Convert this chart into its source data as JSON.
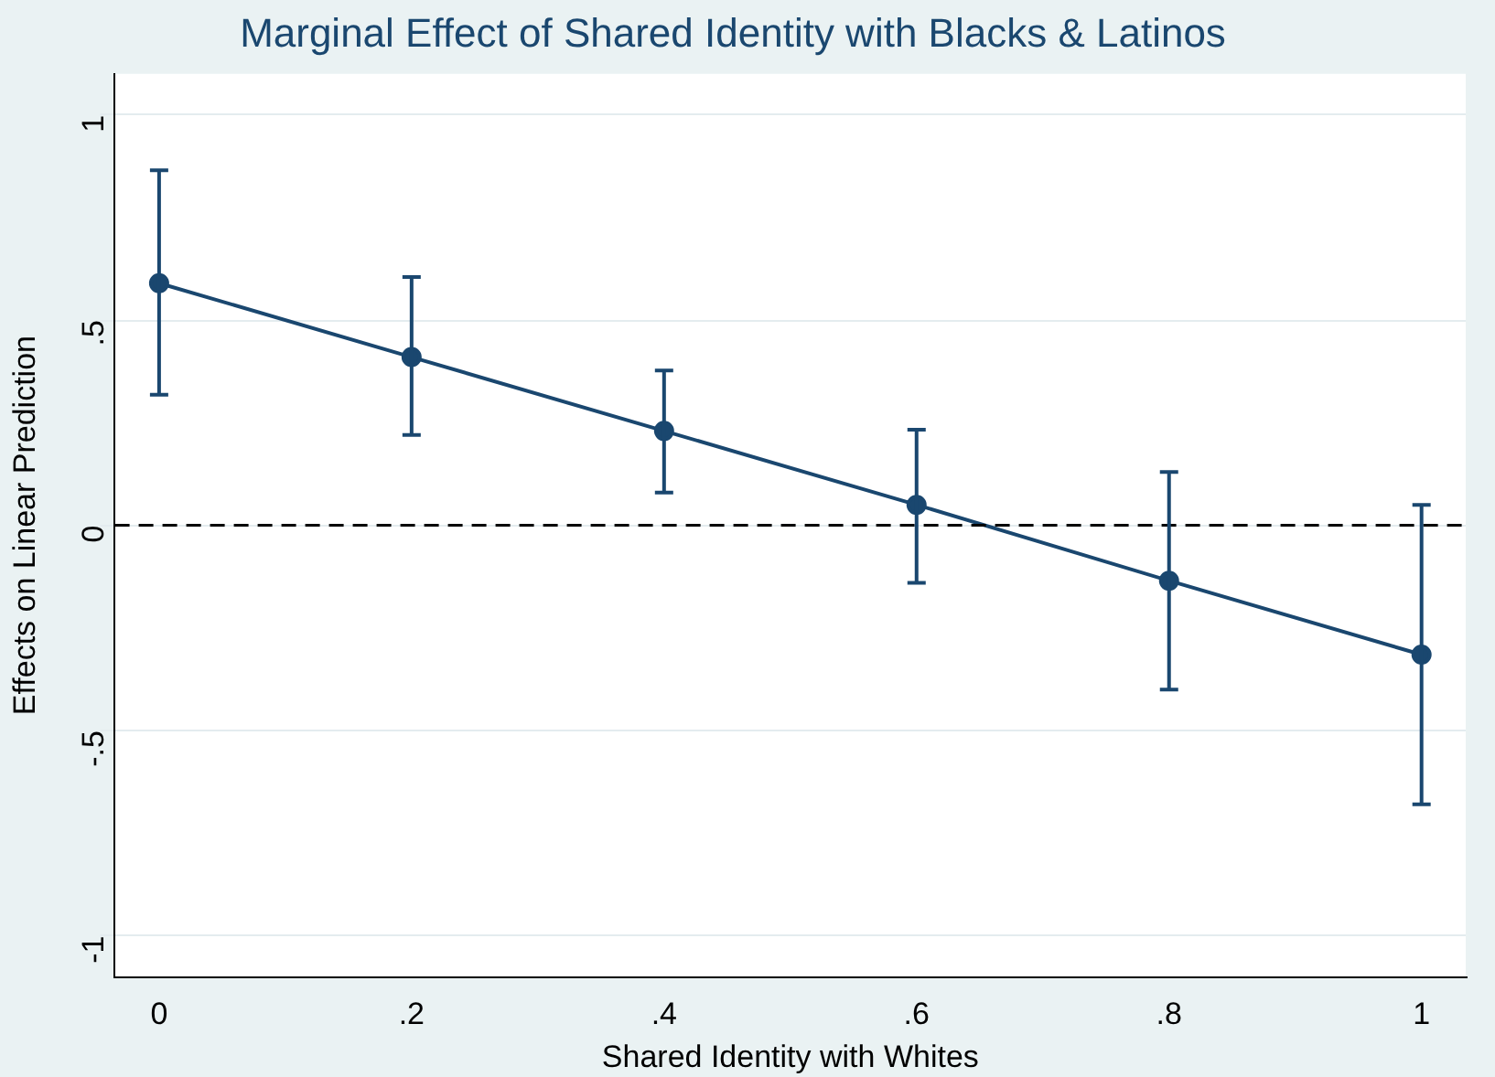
{
  "chart_data": {
    "type": "line",
    "title": "Marginal Effect of Shared Identity with Blacks & Latinos",
    "xlabel": "Shared Identity with Whites",
    "ylabel": "Effects on Linear Prediction",
    "x": [
      0,
      0.2,
      0.4,
      0.6,
      0.8,
      1
    ],
    "series": [
      {
        "color": "#1a476f",
        "values": [
          0.59,
          0.41,
          0.23,
          0.05,
          -0.135,
          -0.315
        ],
        "errors": [
          [
            0.318,
            0.865
          ],
          [
            0.22,
            0.605
          ],
          [
            0.08,
            0.377
          ],
          [
            -0.14,
            0.233
          ],
          [
            -0.4,
            0.13
          ],
          [
            -0.68,
            0.05
          ]
        ]
      }
    ],
    "xlim": [
      -0.035,
      1.035
    ],
    "xticks": [
      {
        "value": 0,
        "label": "0"
      },
      {
        "value": 0.2,
        "label": ".2"
      },
      {
        "value": 0.4,
        "label": ".4"
      },
      {
        "value": 0.6,
        "label": ".6"
      },
      {
        "value": 0.8,
        "label": ".8"
      },
      {
        "value": 1,
        "label": "1"
      }
    ],
    "ylim": [
      -1.1,
      1.1
    ],
    "yticks": [
      {
        "value": -1,
        "label": "-1"
      },
      {
        "value": -0.5,
        "label": "-.5"
      },
      {
        "value": 0,
        "label": "0"
      },
      {
        "value": 0.5,
        "label": ".5"
      },
      {
        "value": 1,
        "label": "1"
      }
    ],
    "ref_lines": [
      {
        "axis": "y",
        "value": 0,
        "color": "#000000",
        "line_style": "dashed"
      }
    ],
    "grid": "y",
    "legend": false,
    "marker": "circle",
    "line_style": "solid"
  }
}
